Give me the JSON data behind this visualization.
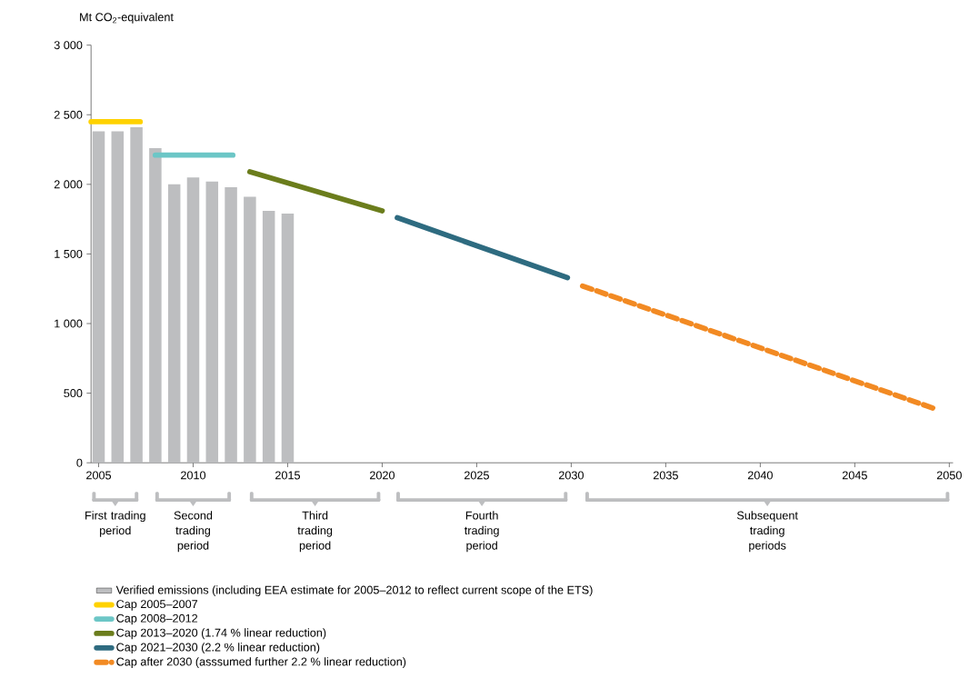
{
  "chart_data": {
    "type": "bar",
    "ylabel": "Mt CO$_{2}$-equivalent",
    "xlim": [
      2004.6,
      2050.2
    ],
    "ylim": [
      0,
      3000
    ],
    "xticks": [
      2005,
      2010,
      2015,
      2020,
      2025,
      2030,
      2035,
      2040,
      2045,
      2050
    ],
    "yticks": [
      0,
      500,
      {
        "value": 1000,
        "label": "1 000"
      },
      {
        "value": 1500,
        "label": "1 500"
      },
      {
        "value": 2000,
        "label": "2 000"
      },
      {
        "value": 2500,
        "label": "2 500"
      },
      {
        "value": 3000,
        "label": "3 000"
      }
    ],
    "legend": "bottom",
    "series": [
      {
        "name": "Verified emissions (including EEA estimate for 2005–2012 to reflect current scope of the ETS)",
        "color": "#bdbec0",
        "x": [
          2005,
          2006,
          2007,
          2008,
          2009,
          2010,
          2011,
          2012,
          2013,
          2014,
          2015
        ],
        "values": [
          2380,
          2380,
          2410,
          2260,
          2000,
          2050,
          2020,
          1980,
          1910,
          1810,
          1790
        ]
      },
      {
        "name": "Cap 2005–2007",
        "type": "line",
        "color": "#ffd200",
        "line_style": "solid",
        "x": [
          2004.6,
          2007.2
        ],
        "values": [
          2450,
          2450
        ]
      },
      {
        "name": "Cap 2008–2012",
        "type": "line",
        "color": "#6cc6c6",
        "line_style": "solid",
        "x": [
          2008.0,
          2012.1
        ],
        "values": [
          2210,
          2210
        ]
      },
      {
        "name": "Cap 2013–2020 (1.74 % linear reduction)",
        "type": "line",
        "color": "#6b7d1c",
        "line_style": "solid",
        "x": [
          2013,
          2020
        ],
        "values": [
          2090,
          1810
        ]
      },
      {
        "name": "Cap 2021–2030 (2.2 % linear reduction)",
        "type": "line",
        "color": "#2e6b80",
        "line_style": "solid",
        "x": [
          2020.8,
          2029.8
        ],
        "values": [
          1760,
          1330
        ]
      },
      {
        "name": "Cap after 2030 (asssumed further 2.2 % linear reduction)",
        "type": "line",
        "color": "#f28a23",
        "line_style": "dashed",
        "x": [
          2030.6,
          2049.2
        ],
        "values": [
          1270,
          390
        ]
      }
    ],
    "annotations": [
      "First trading period",
      "Second trading period",
      "Third trading period",
      "Fourth trading period",
      "Subsequent trading periods"
    ]
  }
}
